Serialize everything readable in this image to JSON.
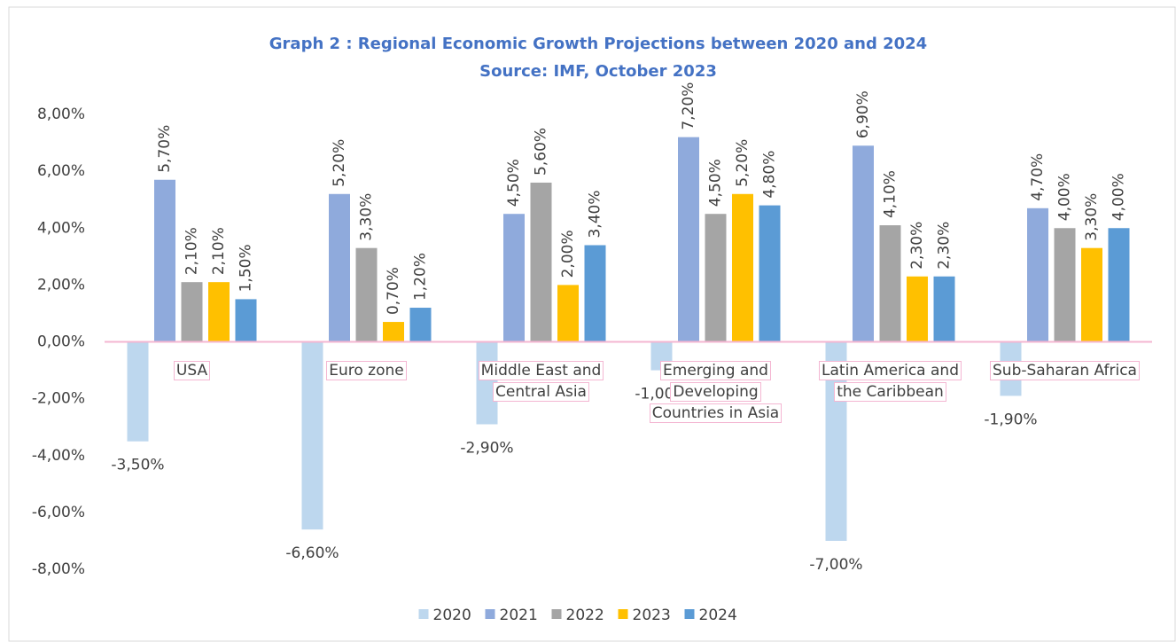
{
  "chart_data": {
    "type": "bar",
    "title": "Graph 2 : Regional Economic Growth Projections between 2020 and 2024",
    "subtitle": "Source: IMF, October 2023",
    "categories": [
      "USA",
      "Euro zone",
      "Middle East and Central Asia",
      "Emerging and Developing Countries in Asia",
      "Latin America and the Caribbean",
      "Sub-Saharan Africa"
    ],
    "series": [
      {
        "name": "2020",
        "color": "#bdd7ee",
        "values": [
          -3.5,
          -6.6,
          -2.9,
          -1.0,
          -7.0,
          -1.9
        ],
        "value_labels": [
          "-3,50%",
          "-6,60%",
          "-2,90%",
          "-1,00%",
          "-7,00%",
          "-1,90%"
        ]
      },
      {
        "name": "2021",
        "color": "#8faadc",
        "values": [
          5.7,
          5.2,
          4.5,
          7.2,
          6.9,
          4.7
        ],
        "value_labels": [
          "5,70%",
          "5,20%",
          "4,50%",
          "7,20%",
          "6,90%",
          "4,70%"
        ]
      },
      {
        "name": "2022",
        "color": "#a5a5a5",
        "values": [
          2.1,
          3.3,
          5.6,
          4.5,
          4.1,
          4.0
        ],
        "value_labels": [
          "2,10%",
          "3,30%",
          "5,60%",
          "4,50%",
          "4,10%",
          "4,00%"
        ]
      },
      {
        "name": "2023",
        "color": "#ffc000",
        "values": [
          2.1,
          0.7,
          2.0,
          5.2,
          2.3,
          3.3
        ],
        "value_labels": [
          "2,10%",
          "0,70%",
          "2,00%",
          "5,20%",
          "2,30%",
          "3,30%"
        ]
      },
      {
        "name": "2024",
        "color": "#5b9bd5",
        "values": [
          1.5,
          1.2,
          3.4,
          4.8,
          2.3,
          4.0
        ],
        "value_labels": [
          "1,50%",
          "1,20%",
          "3,40%",
          "4,80%",
          "2,30%",
          "4,00%"
        ]
      }
    ],
    "ylim": [
      -8,
      8
    ],
    "yticks": [
      {
        "value": -8,
        "label": "-8,00%"
      },
      {
        "value": -6,
        "label": "-6,00%"
      },
      {
        "value": -4,
        "label": "-4,00%"
      },
      {
        "value": -2,
        "label": "-2,00%"
      },
      {
        "value": 0,
        "label": "0,00%"
      },
      {
        "value": 2,
        "label": "2,00%"
      },
      {
        "value": 4,
        "label": "4,00%"
      },
      {
        "value": 6,
        "label": "6,00%"
      },
      {
        "value": 8,
        "label": "8,00%"
      }
    ],
    "grid": false,
    "legend": "bottom"
  }
}
